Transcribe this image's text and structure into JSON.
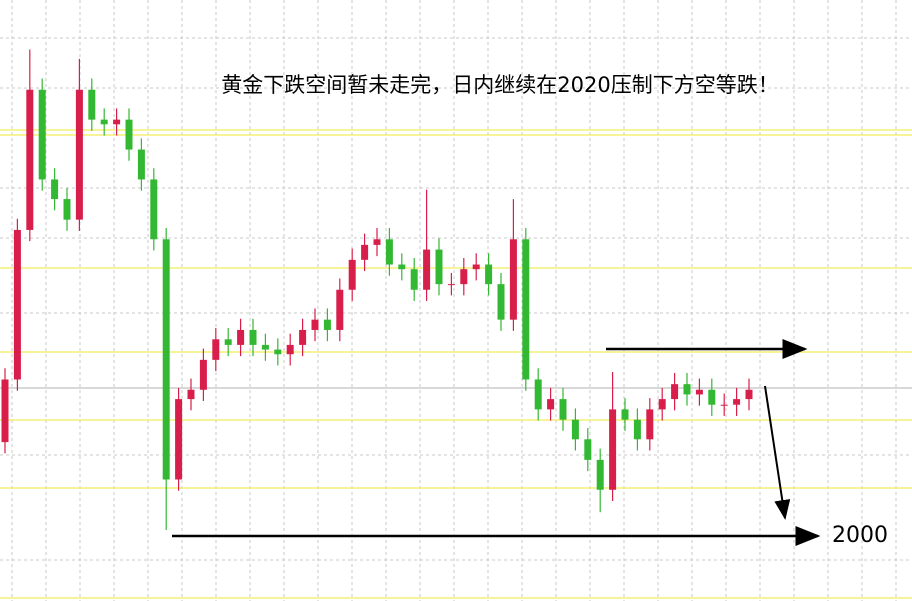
{
  "chart_data": {
    "type": "candlestick",
    "title": "黄金下跌空间暂未走完，日内继续在2020压制下方空等跌！",
    "target_label": "2000",
    "up_color": "#d81e4a",
    "down_color": "#33b833",
    "ylim": [
      1993,
      2057.3
    ],
    "open": [
      2010.0,
      2016.7,
      2032.7,
      2047.7,
      2038.1,
      2036.0,
      2033.8,
      2047.7,
      2044.5,
      2044.0,
      2044.5,
      2041.3,
      2038.1,
      2031.7,
      2006.0,
      2014.6,
      2015.6,
      2018.8,
      2021.0,
      2020.4,
      2022.0,
      2020.4,
      2019.9,
      2019.4,
      2020.4,
      2022.0,
      2023.1,
      2022.0,
      2026.3,
      2029.5,
      2031.1,
      2031.7,
      2029.0,
      2028.5,
      2026.3,
      2030.6,
      2026.9,
      2026.9,
      2028.5,
      2029.0,
      2026.9,
      2023.1,
      2031.7,
      2016.7,
      2013.5,
      2014.6,
      2012.4,
      2010.3,
      2008.1,
      2004.9,
      2013.5,
      2012.4,
      2010.3,
      2013.5,
      2014.6,
      2016.2,
      2015.1,
      2015.6,
      2014.0,
      2014.0,
      2014.6
    ],
    "high": [
      2017.9,
      2033.9,
      2052.0,
      2048.9,
      2039.3,
      2037.2,
      2051.0,
      2048.9,
      2045.7,
      2045.7,
      2045.7,
      2042.5,
      2039.3,
      2032.9,
      2015.8,
      2016.8,
      2020.0,
      2022.2,
      2022.2,
      2023.2,
      2023.2,
      2021.6,
      2021.1,
      2021.6,
      2023.2,
      2024.3,
      2024.3,
      2027.5,
      2030.7,
      2032.3,
      2032.9,
      2032.9,
      2030.2,
      2029.7,
      2037.0,
      2031.8,
      2028.1,
      2029.7,
      2030.2,
      2030.2,
      2028.1,
      2036.0,
      2032.9,
      2017.9,
      2015.8,
      2015.8,
      2013.6,
      2011.5,
      2009.3,
      2017.5,
      2014.7,
      2013.6,
      2014.7,
      2015.8,
      2017.4,
      2017.4,
      2016.8,
      2016.8,
      2015.2,
      2015.8,
      2016.8
    ],
    "low": [
      2008.8,
      2015.5,
      2031.5,
      2036.9,
      2034.8,
      2032.6,
      2032.6,
      2043.3,
      2042.8,
      2042.8,
      2040.1,
      2036.9,
      2030.5,
      2000.6,
      2004.8,
      2013.4,
      2014.4,
      2017.6,
      2019.2,
      2019.2,
      2019.2,
      2018.7,
      2018.2,
      2018.2,
      2019.2,
      2020.8,
      2020.8,
      2020.8,
      2025.1,
      2028.3,
      2029.9,
      2027.8,
      2027.3,
      2025.1,
      2025.1,
      2025.7,
      2025.7,
      2025.7,
      2027.3,
      2025.7,
      2021.9,
      2021.9,
      2015.5,
      2012.3,
      2012.3,
      2011.2,
      2009.1,
      2006.9,
      2002.5,
      2003.7,
      2011.2,
      2009.1,
      2009.1,
      2012.3,
      2013.4,
      2013.9,
      2013.9,
      2012.8,
      2012.8,
      2012.8,
      2013.4
    ],
    "close": [
      2016.7,
      2032.7,
      2047.7,
      2038.1,
      2036.0,
      2033.8,
      2047.7,
      2044.5,
      2044.0,
      2044.5,
      2041.3,
      2038.1,
      2031.7,
      2006.0,
      2014.6,
      2015.6,
      2018.8,
      2021.0,
      2020.4,
      2022.0,
      2020.4,
      2019.9,
      2019.4,
      2020.4,
      2022.0,
      2023.1,
      2022.0,
      2026.3,
      2029.5,
      2031.1,
      2031.7,
      2029.0,
      2028.5,
      2026.3,
      2030.6,
      2026.9,
      2026.9,
      2028.5,
      2029.0,
      2026.9,
      2023.1,
      2031.7,
      2016.7,
      2013.5,
      2014.6,
      2012.4,
      2010.3,
      2008.1,
      2004.9,
      2013.5,
      2012.4,
      2010.3,
      2013.5,
      2014.6,
      2016.2,
      2015.1,
      2015.6,
      2014.0,
      2014.0,
      2014.6,
      2015.6
    ]
  }
}
